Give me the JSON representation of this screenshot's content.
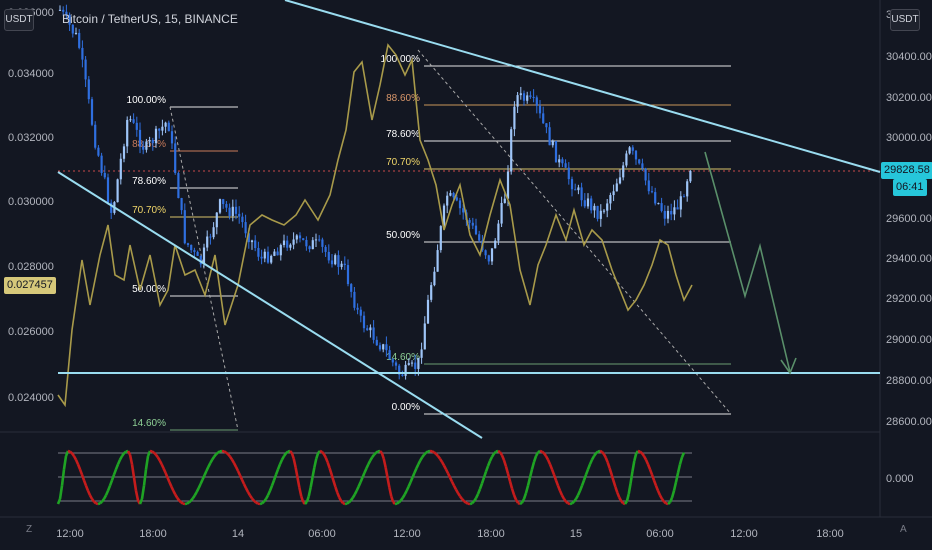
{
  "title": "Bitcoin / TetherUS, 15, BINANCE",
  "left_unit": "USDT",
  "right_unit": "USDT",
  "left_axis_ticks": [
    "0.036000",
    "0.034000",
    "0.032000",
    "0.030000",
    "0.028000",
    "0.026000",
    "0.024000"
  ],
  "right_axis_ticks": [
    "30400.00",
    "30200.00",
    "30000.00",
    "29600.00",
    "29400.00",
    "29200.00",
    "29000.00",
    "28800.00",
    "28600.00"
  ],
  "right_axis_partial_top": "30",
  "indicator_tick": "0.000",
  "time_ticks": [
    "12:00",
    "18:00",
    "14",
    "06:00",
    "12:00",
    "18:00",
    "15",
    "06:00",
    "12:00",
    "18:00"
  ],
  "left_price_tag": "0.027457",
  "right_price_tag": {
    "price": "29828.58",
    "countdown": "06:41"
  },
  "corner_left": "Z",
  "corner_right": "A",
  "fib_left": [
    "100.00%",
    "88.60%",
    "78.60%",
    "70.70%",
    "50.00%",
    "14.60%"
  ],
  "fib_right": [
    "100.00%",
    "88.60%",
    "78.60%",
    "70.70%",
    "50.00%",
    "14.60%",
    "0.00%"
  ],
  "colors": {
    "background": "#131722",
    "up_candle": "#9fc5f8",
    "down_candle": "#2f6fe0",
    "overlay_line": "#a89a4a",
    "trendline": "#9adcf0",
    "projection": "#5a8f6a",
    "stoch_up": "#1fa324",
    "stoch_down": "#c41c1c",
    "price_tag": "#26c6da"
  },
  "chart_data": [
    {
      "type": "candlestick",
      "title": "Bitcoin / TetherUS, 15, BINANCE",
      "y_axis": "right",
      "ylim": [
        28500,
        30700
      ],
      "x": [
        "12:00",
        "18:00",
        "14",
        "06:00",
        "12:00",
        "18:00",
        "15",
        "06:00"
      ],
      "close_approx": [
        30600,
        29900,
        29700,
        29600,
        28700,
        30050,
        29750,
        29828.58
      ],
      "last_price": 29828.58,
      "support_level": 28850
    },
    {
      "type": "line",
      "y_axis": "left",
      "ylim": [
        0.0235,
        0.0365
      ],
      "last_value": 0.027457
    },
    {
      "type": "line",
      "title": "stochastic oscillator",
      "reference_level": 0.0
    }
  ]
}
